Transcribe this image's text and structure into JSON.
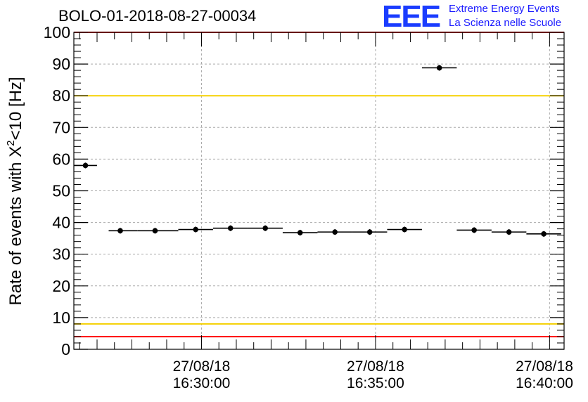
{
  "title": "BOLO-01-2018-08-27-00034",
  "logo": {
    "mark": "EEE",
    "line1": "Extreme Energy Events",
    "line2": "La Scienza nelle Scuole"
  },
  "colors": {
    "points": "#000000",
    "threshold_red": "#ff0000",
    "threshold_yellow": "#f5d000",
    "grid": "#aaaaaa",
    "logo": "#1a3cff"
  },
  "chart_data": {
    "type": "scatter",
    "title": "BOLO-01-2018-08-27-00034",
    "ylabel": "Rate of events with X²<10 [Hz]",
    "xlabel": "",
    "x_is_time": true,
    "xlim": [
      "16:26:20",
      "16:40:25"
    ],
    "ylim": [
      0,
      100
    ],
    "y_ticks": [
      0,
      10,
      20,
      30,
      40,
      50,
      60,
      70,
      80,
      90,
      100
    ],
    "x_ticks": [
      {
        "time": "16:30:00",
        "label_date": "27/08/18",
        "label_time": "16:30:00"
      },
      {
        "time": "16:35:00",
        "label_date": "27/08/18",
        "label_time": "16:35:00"
      },
      {
        "time": "16:40:00",
        "label_date": "27/08/18",
        "label_time": "16:40:00"
      }
    ],
    "grid": true,
    "series": [
      {
        "points": [
          {
            "x": "16:26:40",
            "x_start": "16:26:20",
            "x_end": "16:27:00",
            "y": 58.0
          },
          {
            "x": "16:27:40",
            "x_start": "16:27:20",
            "x_end": "16:28:10",
            "y": 37.4
          },
          {
            "x": "16:28:40",
            "x_start": "16:28:10",
            "x_end": "16:29:20",
            "y": 37.4
          },
          {
            "x": "16:29:50",
            "x_start": "16:29:20",
            "x_end": "16:30:20",
            "y": 37.8
          },
          {
            "x": "16:30:50",
            "x_start": "16:30:20",
            "x_end": "16:31:20",
            "y": 38.2
          },
          {
            "x": "16:31:50",
            "x_start": "16:31:20",
            "x_end": "16:32:20",
            "y": 38.2
          },
          {
            "x": "16:32:50",
            "x_start": "16:32:20",
            "x_end": "16:33:20",
            "y": 36.8
          },
          {
            "x": "16:33:50",
            "x_start": "16:33:20",
            "x_end": "16:34:20",
            "y": 37.0
          },
          {
            "x": "16:34:50",
            "x_start": "16:34:20",
            "x_end": "16:35:20",
            "y": 37.0
          },
          {
            "x": "16:35:50",
            "x_start": "16:35:20",
            "x_end": "16:36:20",
            "y": 37.8
          },
          {
            "x": "16:36:50",
            "x_start": "16:36:20",
            "x_end": "16:37:20",
            "y": 88.8
          },
          {
            "x": "16:37:50",
            "x_start": "16:37:20",
            "x_end": "16:38:20",
            "y": 37.6
          },
          {
            "x": "16:38:50",
            "x_start": "16:38:20",
            "x_end": "16:39:20",
            "y": 37.0
          },
          {
            "x": "16:39:50",
            "x_start": "16:39:20",
            "x_end": "16:40:20",
            "y": 36.4
          }
        ]
      }
    ],
    "reference_lines": [
      {
        "y": 4,
        "color": "#ff0000"
      },
      {
        "y": 8,
        "color": "#f5d000"
      },
      {
        "y": 80,
        "color": "#f5d000"
      },
      {
        "y": 100,
        "color": "#ff0000"
      }
    ]
  }
}
